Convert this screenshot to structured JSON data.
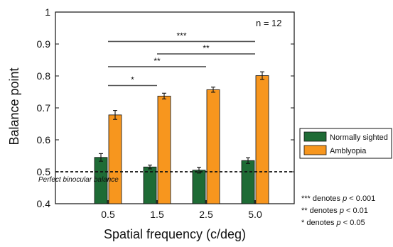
{
  "chart_data": {
    "type": "bar",
    "title": "",
    "xlabel": "Spatial frequency (c/deg)",
    "ylabel": "Balance point",
    "ylim": [
      0.4,
      1.0
    ],
    "yticks": [
      "0.4",
      "0.5",
      "0.6",
      "0.7",
      "0.8",
      "0.9",
      "1"
    ],
    "categories": [
      "0.5",
      "1.5",
      "2.5",
      "5.0"
    ],
    "series": [
      {
        "name": "Normally sighted",
        "color": "#1e6b35",
        "values": [
          0.545,
          0.515,
          0.505,
          0.535
        ],
        "errors": [
          0.012,
          0.006,
          0.009,
          0.009
        ]
      },
      {
        "name": "Amblyopia",
        "color": "#f7961e",
        "values": [
          0.678,
          0.737,
          0.757,
          0.801
        ],
        "errors": [
          0.014,
          0.009,
          0.008,
          0.012
        ]
      }
    ],
    "reference_line": {
      "y": 0.5,
      "label": "Perfect binocular balance"
    },
    "sample_label": "n = 12",
    "significance": [
      {
        "from": "0.5",
        "to": "1.5",
        "y": 0.77,
        "label": "*"
      },
      {
        "from": "0.5",
        "to": "2.5",
        "y": 0.829,
        "label": "**"
      },
      {
        "from": "1.5",
        "to": "5.0",
        "y": 0.869,
        "label": "**"
      },
      {
        "from": "0.5",
        "to": "5.0",
        "y": 0.908,
        "label": "***"
      }
    ],
    "legend_position": "right",
    "notes": [
      "*** denotes p < 0.001",
      "** denotes p < 0.01",
      "* denotes p < 0.05"
    ],
    "grid": false
  }
}
